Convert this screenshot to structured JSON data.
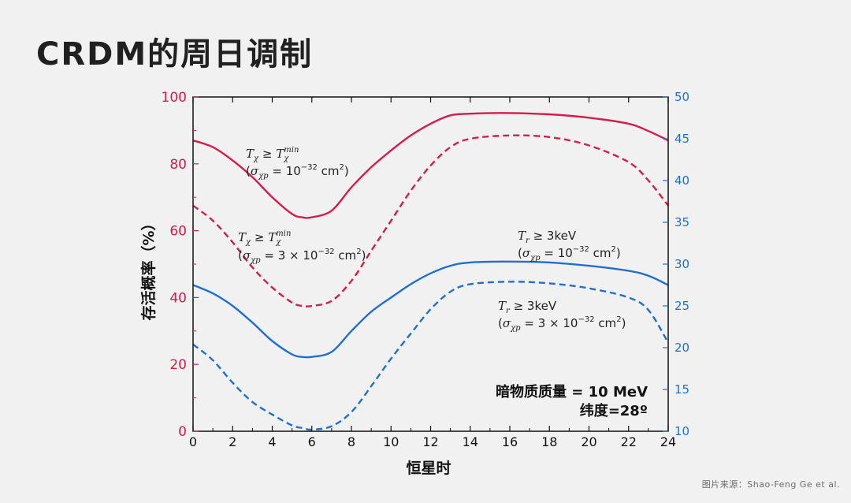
{
  "page": {
    "title": "CRDM的周日调制",
    "credit": "图片来源：Shao-Feng Ge et al."
  },
  "colors": {
    "red": "#d41c4e",
    "blue": "#1f6fd2",
    "axis": "#111111"
  },
  "chart_data": {
    "type": "line",
    "title": "",
    "xlabel": "恒星时",
    "ylabel": "存活概率（%）",
    "xlim": [
      0,
      24
    ],
    "ylim": [
      0,
      100
    ],
    "ylim_right": [
      10,
      50
    ],
    "x_ticks": [
      0,
      2,
      4,
      6,
      8,
      10,
      12,
      14,
      16,
      18,
      20,
      22,
      24
    ],
    "y_ticks": [
      0,
      20,
      40,
      60,
      80,
      100
    ],
    "y_ticks_right": [
      10,
      15,
      20,
      25,
      30,
      35,
      40,
      45,
      50
    ],
    "grid": false,
    "x": [
      0,
      1,
      2,
      3,
      4,
      5,
      5.5,
      6,
      7,
      8,
      9,
      10,
      11,
      12,
      13,
      14,
      16,
      18,
      20,
      22,
      23,
      24
    ],
    "series": [
      {
        "axis": "left",
        "color": "#d41c4e",
        "dash": "solid",
        "values": [
          87,
          85,
          81,
          76,
          70,
          65,
          64,
          64,
          66,
          73,
          79,
          84,
          88.5,
          92,
          94.5,
          95,
          95.2,
          94.8,
          93.8,
          92,
          89.8,
          87
        ]
      },
      {
        "axis": "left",
        "color": "#d41c4e",
        "dash": "dashed",
        "values": [
          67.5,
          63,
          56.5,
          49,
          43,
          38.5,
          37.5,
          37.5,
          39,
          45,
          54,
          63,
          72,
          79.5,
          85,
          87.5,
          88.5,
          88,
          85.5,
          80.5,
          75,
          67.5
        ]
      },
      {
        "axis": "right",
        "color": "#1f6fd2",
        "dash": "solid",
        "values": [
          27.5,
          26.5,
          25,
          23,
          20.8,
          19.2,
          18.9,
          18.9,
          19.5,
          22,
          24.3,
          26,
          27.6,
          28.9,
          29.8,
          30.2,
          30.3,
          30.2,
          29.8,
          29.2,
          28.6,
          27.5
        ]
      },
      {
        "axis": "right",
        "color": "#1f6fd2",
        "dash": "dashed",
        "values": [
          20.4,
          18.5,
          15.8,
          13.5,
          12,
          10.7,
          10.4,
          10.2,
          10.6,
          12.3,
          15.4,
          18.7,
          21.7,
          24.6,
          26.7,
          27.6,
          27.9,
          27.7,
          27.1,
          26,
          24.5,
          20.6
        ]
      }
    ],
    "annotations": {
      "a1": {
        "base": "T",
        "sub": "χ",
        "rel": " ≥ ",
        "base2": "T",
        "sub2": "χ",
        "sup2": "min",
        "open": "(",
        "sigma": "σ",
        "sigsub": "χp",
        "eq": " = ",
        "coef": "",
        "ten": "10",
        "exp": "−32",
        "unit": " cm",
        "usup": "2",
        "close": ")"
      },
      "a2": {
        "base": "T",
        "sub": "χ",
        "rel": " ≥ ",
        "base2": "T",
        "sub2": "χ",
        "sup2": "min",
        "open": "(",
        "sigma": "σ",
        "sigsub": "χp",
        "eq": " = ",
        "coef": "3 × ",
        "ten": "10",
        "exp": "−32",
        "unit": " cm",
        "usup": "2",
        "close": ")"
      },
      "a3": {
        "base": "T",
        "sub": "r",
        "rel": " ≥ ",
        "rhs": "3keV",
        "open": "(",
        "sigma": "σ",
        "sigsub": "χp",
        "eq": " = ",
        "coef": "",
        "ten": "10",
        "exp": "−32",
        "unit": " cm",
        "usup": "2",
        "close": ")"
      },
      "a4": {
        "base": "T",
        "sub": "r",
        "rel": " ≥ ",
        "rhs": "3keV",
        "open": "(",
        "sigma": "σ",
        "sigsub": "χp",
        "eq": " = ",
        "coef": "3 × ",
        "ten": "10",
        "exp": "−32",
        "unit": " cm",
        "usup": "2",
        "close": ")"
      }
    },
    "info_line1": "暗物质质量 = 10 MeV",
    "info_line2": "纬度=28º"
  }
}
